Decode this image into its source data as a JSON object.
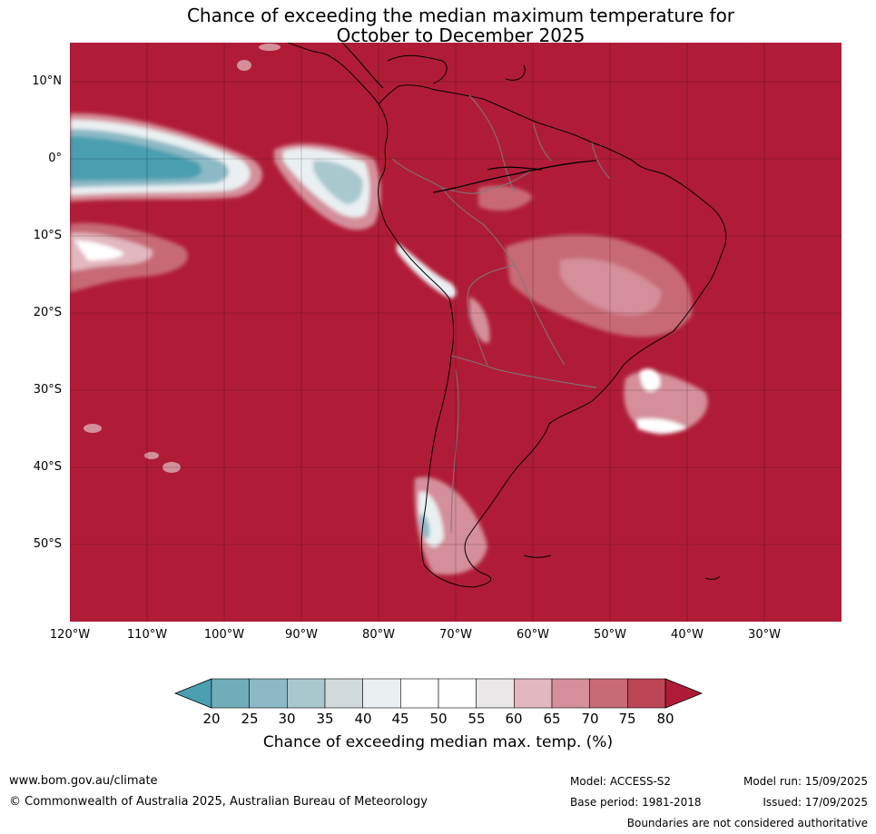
{
  "title_line1": "Chance of exceeding the median maximum temperature for",
  "title_line2": "October to December 2025",
  "lat_labels": [
    "10°N",
    "0°",
    "10°S",
    "20°S",
    "30°S",
    "40°S",
    "50°S"
  ],
  "lon_labels": [
    "120°W",
    "110°W",
    "100°W",
    "90°W",
    "80°W",
    "70°W",
    "60°W",
    "50°W",
    "40°W",
    "30°W"
  ],
  "colorbar": {
    "ticks": [
      "20",
      "25",
      "30",
      "35",
      "40",
      "45",
      "50",
      "55",
      "60",
      "65",
      "70",
      "75",
      "80"
    ],
    "colors": [
      "#4a9fb0",
      "#6fadba",
      "#8cb9c6",
      "#a9c8cd",
      "#d0dadd",
      "#eaf0f2",
      "#ffffff",
      "#ffffff",
      "#e9e7e8",
      "#e2b7bf",
      "#d48f9a",
      "#c86a76",
      "#bc4655",
      "#b01c37"
    ],
    "label": "Chance of exceeding median max. temp. (%)"
  },
  "footer": {
    "website": "www.bom.gov.au/climate",
    "copyright": "© Commonwealth of Australia 2025, Australian Bureau of Meteorology",
    "model": "Model: ACCESS-S2",
    "base_period": "Base period: 1981-2018",
    "model_run": "Model run: 15/09/2025",
    "issued": "Issued: 17/09/2025",
    "disclaimer": "Boundaries are not considered authoritative"
  }
}
